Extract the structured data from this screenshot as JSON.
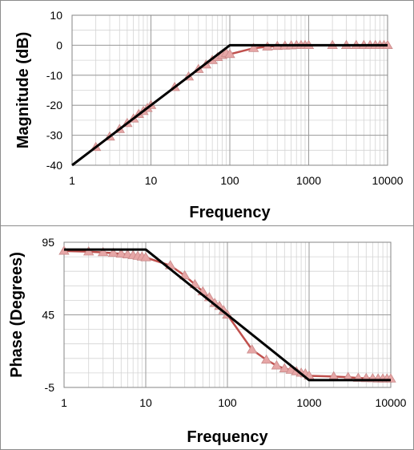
{
  "chart_data": [
    {
      "type": "line",
      "xlabel": "Frequency",
      "ylabel": "Magnitude (dB)",
      "xscale": "log",
      "xlim": [
        1,
        10000
      ],
      "ylim": [
        -40,
        10
      ],
      "xticks": [
        "1",
        "10",
        "100",
        "1000",
        "10000"
      ],
      "yticks": [
        "10",
        "0",
        "-10",
        "-20",
        "-30",
        "-40"
      ],
      "grid": true,
      "legend": "none",
      "series": [
        {
          "style": "measured",
          "color": "#c0504d",
          "marker": "triangle",
          "marker_color": "#e6a6a6",
          "x": [
            2,
            3,
            4,
            5,
            6,
            7,
            8,
            9,
            10,
            20,
            30,
            40,
            50,
            60,
            70,
            80,
            90,
            100,
            200,
            300,
            400,
            500,
            600,
            700,
            800,
            900,
            1000,
            2000,
            3000,
            4000,
            5000,
            6000,
            7000,
            8000,
            9000,
            10000
          ],
          "y": [
            -34,
            -30.5,
            -28,
            -26,
            -24.5,
            -23,
            -22,
            -21,
            -20,
            -14,
            -10.5,
            -8,
            -6.5,
            -5,
            -4,
            -3.3,
            -2.6,
            -3,
            -1,
            -0.5,
            -0.3,
            -0.2,
            -0.1,
            0,
            0,
            0,
            0,
            0,
            0,
            0,
            0,
            0,
            0,
            0,
            0,
            0
          ]
        },
        {
          "style": "asymptote",
          "color": "#000000",
          "x": [
            1,
            100,
            10000
          ],
          "y": [
            -40,
            0,
            0
          ]
        }
      ]
    },
    {
      "type": "line",
      "xlabel": "Frequency",
      "ylabel": "Phase (Degrees)",
      "xscale": "log",
      "xlim": [
        1,
        10000
      ],
      "ylim": [
        -5,
        95
      ],
      "xticks": [
        "1",
        "10",
        "100",
        "1000",
        "10000"
      ],
      "yticks": [
        "95",
        "45",
        "-5"
      ],
      "grid": true,
      "legend": "none",
      "series": [
        {
          "style": "measured",
          "color": "#c0504d",
          "marker": "triangle",
          "marker_color": "#e6a6a6",
          "x": [
            1,
            2,
            3,
            4,
            5,
            6,
            7,
            8,
            9,
            10,
            20,
            30,
            40,
            50,
            60,
            70,
            80,
            90,
            100,
            200,
            300,
            400,
            500,
            600,
            700,
            800,
            900,
            1000,
            2000,
            3000,
            4000,
            5000,
            6000,
            7000,
            8000,
            9000,
            10000
          ],
          "y": [
            89,
            88.5,
            88,
            87.5,
            87,
            86.5,
            86,
            85.5,
            85,
            84.5,
            79,
            72,
            66,
            61,
            57,
            53,
            51,
            48,
            45,
            21,
            14,
            10,
            8,
            7,
            6,
            5,
            4.5,
            3,
            2.5,
            2,
            1.5,
            1.3,
            1.2,
            1,
            1,
            1,
            1
          ]
        },
        {
          "style": "asymptote",
          "color": "#000000",
          "x": [
            1,
            10,
            1000,
            10000
          ],
          "y": [
            90,
            90,
            0,
            0
          ]
        }
      ]
    }
  ]
}
